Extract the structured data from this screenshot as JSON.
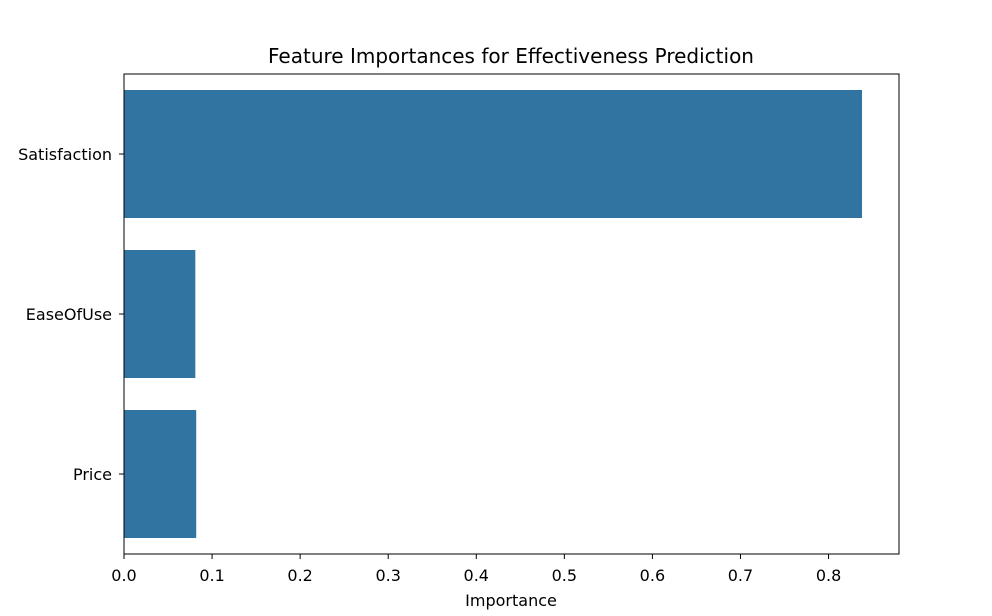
{
  "chart_data": {
    "type": "bar",
    "orientation": "horizontal",
    "title": "Feature Importances for Effectiveness Prediction",
    "xlabel": "Importance",
    "ylabel": "",
    "categories": [
      "Satisfaction",
      "EaseOfUse",
      "Price"
    ],
    "values": [
      0.838,
      0.081,
      0.082
    ],
    "xlim": [
      0,
      0.88
    ],
    "xticks": [
      "0.0",
      "0.1",
      "0.2",
      "0.3",
      "0.4",
      "0.5",
      "0.6",
      "0.7",
      "0.8"
    ],
    "bar_color": "#3274a1",
    "grid": false,
    "legend": "none"
  }
}
